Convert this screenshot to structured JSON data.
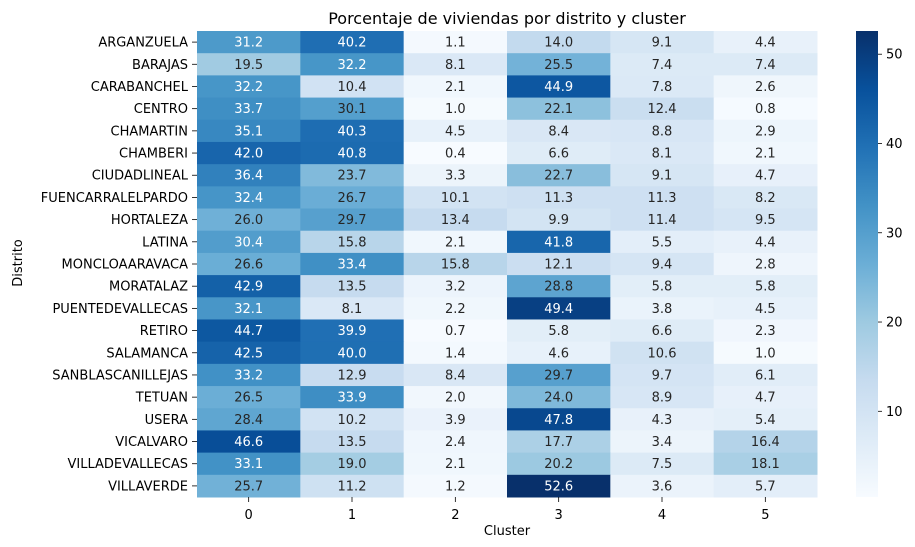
{
  "chart_data": {
    "type": "heatmap",
    "title": "Porcentaje de viviendas por distrito y cluster",
    "xlabel": "Cluster",
    "ylabel": "Distrito",
    "x_categories": [
      "0",
      "1",
      "2",
      "3",
      "4",
      "5"
    ],
    "y_categories": [
      "ARGANZUELA",
      "BARAJAS",
      "CARABANCHEL",
      "CENTRO",
      "CHAMARTIN",
      "CHAMBERI",
      "CIUDADLINEAL",
      "FUENCARRALELPARDO",
      "HORTALEZA",
      "LATINA",
      "MONCLOAARAVACA",
      "MORATALAZ",
      "PUENTEDEVALLECAS",
      "RETIRO",
      "SALAMANCA",
      "SANBLASCANILLEJAS",
      "TETUAN",
      "USERA",
      "VICALVARO",
      "VILLADEVALLECAS",
      "VILLAVERDE"
    ],
    "values": [
      [
        31.2,
        40.2,
        1.1,
        14.0,
        9.1,
        4.4
      ],
      [
        19.5,
        32.2,
        8.1,
        25.5,
        7.4,
        7.4
      ],
      [
        32.2,
        10.4,
        2.1,
        44.9,
        7.8,
        2.6
      ],
      [
        33.7,
        30.1,
        1.0,
        22.1,
        12.4,
        0.8
      ],
      [
        35.1,
        40.3,
        4.5,
        8.4,
        8.8,
        2.9
      ],
      [
        42.0,
        40.8,
        0.4,
        6.6,
        8.1,
        2.1
      ],
      [
        36.4,
        23.7,
        3.3,
        22.7,
        9.1,
        4.7
      ],
      [
        32.4,
        26.7,
        10.1,
        11.3,
        11.3,
        8.2
      ],
      [
        26.0,
        29.7,
        13.4,
        9.9,
        11.4,
        9.5
      ],
      [
        30.4,
        15.8,
        2.1,
        41.8,
        5.5,
        4.4
      ],
      [
        26.6,
        33.4,
        15.8,
        12.1,
        9.4,
        2.8
      ],
      [
        42.9,
        13.5,
        3.2,
        28.8,
        5.8,
        5.8
      ],
      [
        32.1,
        8.1,
        2.2,
        49.4,
        3.8,
        4.5
      ],
      [
        44.7,
        39.9,
        0.7,
        5.8,
        6.6,
        2.3
      ],
      [
        42.5,
        40.0,
        1.4,
        4.6,
        10.6,
        1.0
      ],
      [
        33.2,
        12.9,
        8.4,
        29.7,
        9.7,
        6.1
      ],
      [
        26.5,
        33.9,
        2.0,
        24.0,
        8.9,
        4.7
      ],
      [
        28.4,
        10.2,
        3.9,
        47.8,
        4.3,
        5.4
      ],
      [
        46.6,
        13.5,
        2.4,
        17.7,
        3.4,
        16.4
      ],
      [
        33.1,
        19.0,
        2.1,
        20.2,
        7.5,
        18.1
      ],
      [
        25.7,
        11.2,
        1.2,
        52.6,
        3.6,
        5.7
      ]
    ],
    "colormap": "Blues",
    "color_range": [
      0.4,
      52.6
    ],
    "colorbar_ticks": [
      10,
      20,
      30,
      40,
      50
    ],
    "annotations": true,
    "grid": false
  }
}
